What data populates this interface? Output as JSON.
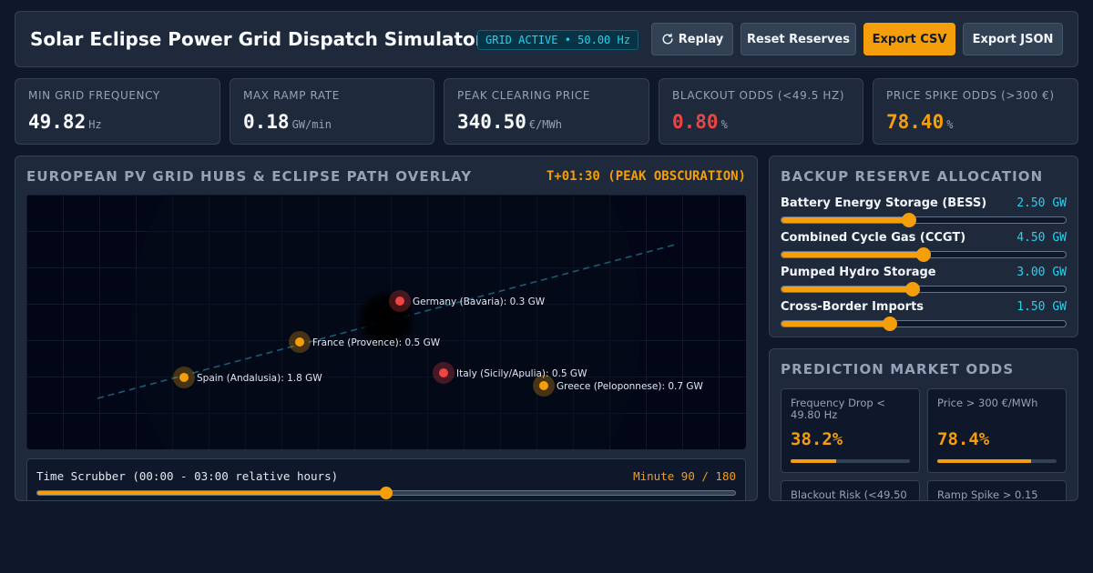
{
  "header": {
    "title": "Solar Eclipse Power Grid Dispatch Simulator",
    "status_badge": "GRID ACTIVE • 50.00 Hz",
    "buttons": {
      "replay": "Replay",
      "reset_reserves": "Reset Reserves",
      "export_csv": "Export CSV",
      "export_json": "Export JSON"
    }
  },
  "kpis": [
    {
      "label": "MIN GRID FREQUENCY",
      "value": "49.82",
      "unit": "Hz",
      "color": "#f8fafc"
    },
    {
      "label": "MAX RAMP RATE",
      "value": "0.18",
      "unit": "GW/min",
      "color": "#f8fafc"
    },
    {
      "label": "PEAK CLEARING PRICE",
      "value": "340.50",
      "unit": "€/MWh",
      "color": "#f8fafc"
    },
    {
      "label": "BLACKOUT ODDS (<49.5 HZ)",
      "value": "0.80",
      "unit": "%",
      "color": "#ef4444"
    },
    {
      "label": "PRICE SPIKE ODDS (>300 €)",
      "value": "78.40",
      "unit": "%",
      "color": "#f59e0b"
    }
  ],
  "map_panel": {
    "title": "EUROPEAN PV GRID HUBS & ECLIPSE PATH OVERLAY",
    "time_label": "T+01:30 (PEAK OBSCURATION)",
    "hubs": [
      {
        "label": "Germany (Bavaria): 0.3 GW",
        "status": "critical"
      },
      {
        "label": "France (Provence): 0.5 GW",
        "status": "warning"
      },
      {
        "label": "Spain (Andalusia): 1.8 GW",
        "status": "warning"
      },
      {
        "label": "Italy (Sicily/Apulia): 0.5 GW",
        "status": "critical"
      },
      {
        "label": "Greece (Peloponnese): 0.7 GW",
        "status": "warning"
      }
    ],
    "status_colors": {
      "critical": "#ef4444",
      "warning": "#f59e0b"
    }
  },
  "scrubber": {
    "label": "Time Scrubber (00:00 - 03:00 relative hours)",
    "minute_label": "Minute 90 / 180",
    "progress": 0.5
  },
  "reserves": {
    "title": "BACKUP RESERVE ALLOCATION",
    "items": [
      {
        "label": "Battery Energy Storage (BESS)",
        "value": "2.50 GW",
        "level": 0.45
      },
      {
        "label": "Combined Cycle Gas (CCGT)",
        "value": "4.50 GW",
        "level": 0.5
      },
      {
        "label": "Pumped Hydro Storage",
        "value": "3.00 GW",
        "level": 0.46
      },
      {
        "label": "Cross-Border Imports",
        "value": "1.50 GW",
        "level": 0.38
      }
    ]
  },
  "prediction": {
    "title": "PREDICTION MARKET ODDS",
    "cards": [
      {
        "label": "Frequency Drop < 49.80 Hz",
        "value": "38.2%",
        "level": 0.382
      },
      {
        "label": "Price > 300 €/MWh",
        "value": "78.4%",
        "level": 0.784
      },
      {
        "label": "Blackout Risk (<49.50",
        "value": "",
        "level": 0
      },
      {
        "label": "Ramp Spike > 0.15",
        "value": "",
        "level": 0
      }
    ]
  }
}
